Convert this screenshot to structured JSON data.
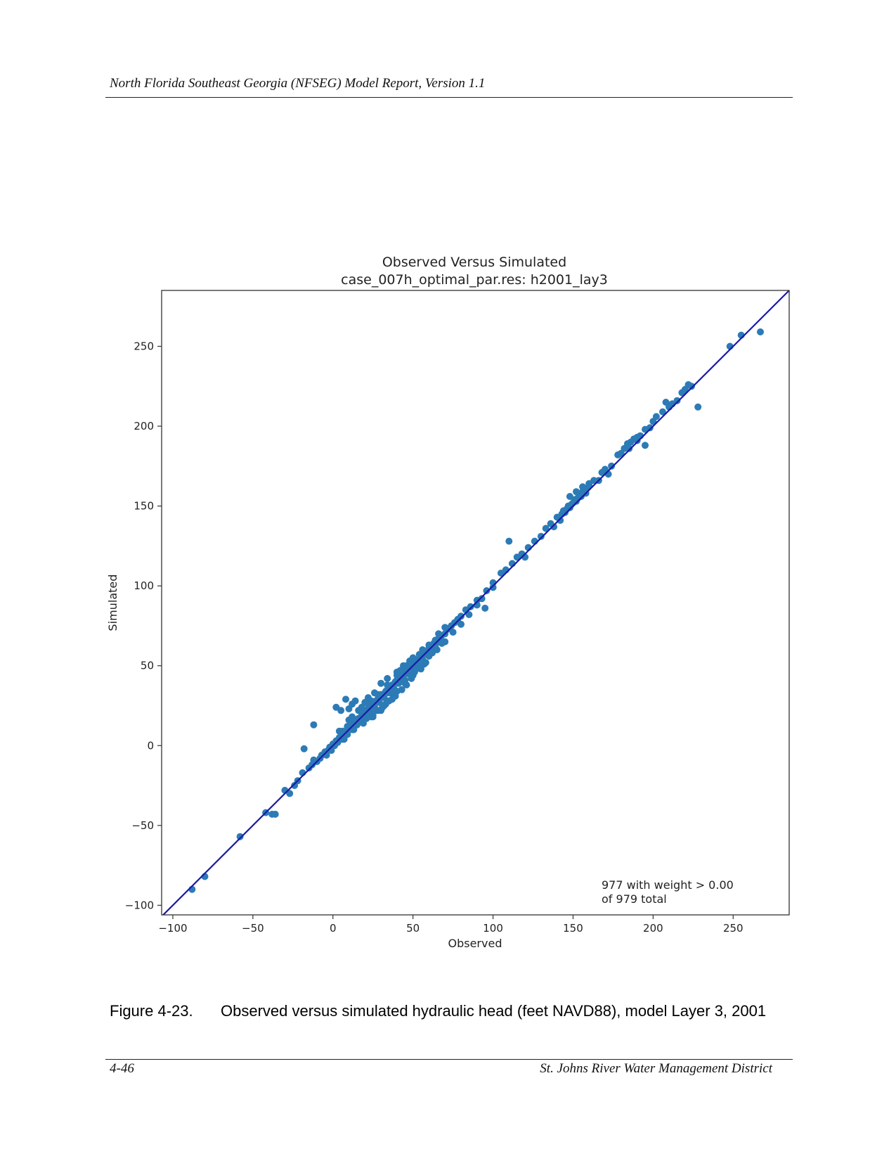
{
  "page": {
    "running_header": "North Florida Southeast Georgia (NFSEG) Model Report, Version 1.1",
    "footer_page": "4-46",
    "footer_org": "St. Johns River Water Management District"
  },
  "caption": {
    "figure_number": "Figure 4-23.",
    "text": "Observed versus simulated hydraulic head (feet NAVD88), model Layer 3, 2001"
  },
  "chart_data": {
    "type": "scatter",
    "title": "Observed Versus Simulated",
    "subtitle": "case_007h_optimal_par.res: h2001_lay3",
    "xlabel": "Observed",
    "ylabel": "Simulated",
    "xlim": [
      -107,
      285
    ],
    "ylim": [
      -106,
      285
    ],
    "xticks": [
      -100,
      -50,
      0,
      50,
      100,
      150,
      200,
      250
    ],
    "xtick_labels": [
      "−100",
      "−50",
      "0",
      "50",
      "100",
      "150",
      "200",
      "250"
    ],
    "yticks": [
      -100,
      -50,
      0,
      50,
      100,
      150,
      200,
      250
    ],
    "ytick_labels": [
      "−100",
      "−50",
      "0",
      "50",
      "100",
      "150",
      "200",
      "250"
    ],
    "grid": false,
    "annotation": [
      "977 with weight > 0.00",
      "of 979 total"
    ],
    "colors": {
      "points": "#2c7bb6",
      "one_to_one_line": "#1a1aa6",
      "axes": "#333333"
    },
    "reference_line": {
      "type": "1:1",
      "from": [
        -107,
        -107
      ],
      "to": [
        285,
        285
      ]
    },
    "series": [
      {
        "x": [
          -88,
          -80,
          -58,
          -42,
          -38,
          -36,
          -30,
          -27,
          -24,
          -22,
          -19,
          -15,
          -13,
          -12,
          -10,
          -8,
          -7,
          -5,
          -4,
          -3,
          -2,
          -1,
          0,
          1,
          2,
          3,
          4,
          5,
          6,
          7,
          8,
          9,
          10,
          11,
          12,
          13,
          14,
          15,
          16,
          17,
          18,
          19,
          20,
          21,
          22,
          23,
          24,
          25,
          26,
          27,
          28,
          29,
          30,
          31,
          32,
          33,
          34,
          35,
          36,
          37,
          38,
          39,
          40,
          41,
          42,
          43,
          44,
          45,
          46,
          47,
          48,
          49,
          50,
          51,
          52,
          53,
          54,
          55,
          56,
          57,
          58,
          59,
          60,
          61,
          62,
          63,
          64,
          65,
          66,
          67,
          68,
          70,
          72,
          74,
          76,
          78,
          80,
          83,
          86,
          90,
          93,
          96,
          100,
          105,
          108,
          112,
          115,
          118,
          120,
          122,
          126,
          130,
          133,
          136,
          138,
          140,
          142,
          143,
          144,
          145,
          146,
          147,
          148,
          149,
          150,
          151,
          152,
          153,
          154,
          155,
          156,
          157,
          158,
          160,
          163,
          166,
          168,
          170,
          172,
          174,
          178,
          180,
          182,
          184,
          186,
          188,
          190,
          192,
          195,
          198,
          200,
          202,
          206,
          208,
          212,
          215,
          218,
          220,
          224,
          228,
          248,
          255,
          267,
          -18,
          -12,
          2,
          5,
          8,
          10,
          12,
          14,
          16,
          18,
          20,
          22,
          24,
          26,
          28,
          30,
          32,
          34,
          36,
          38,
          40,
          42,
          44,
          46,
          48,
          50,
          52,
          54,
          56,
          58,
          60,
          62,
          64,
          66,
          68,
          70,
          6,
          9,
          12,
          15,
          18,
          21,
          24,
          27,
          30,
          33,
          36,
          39,
          42,
          45,
          48,
          51,
          54,
          57,
          4,
          7,
          10,
          13,
          16,
          19,
          22,
          25,
          28,
          31,
          34,
          37,
          40,
          43,
          46,
          49,
          25,
          30,
          35,
          40,
          45,
          50,
          55,
          60,
          65,
          70,
          75,
          80,
          85,
          90,
          95,
          100,
          110,
          148,
          152,
          156,
          158,
          160,
          185,
          190,
          195,
          210,
          222
        ],
        "y": [
          -90,
          -82,
          -57,
          -42,
          -43,
          -43,
          -28,
          -30,
          -25,
          -22,
          -17,
          -14,
          -12,
          -9,
          -10,
          -8,
          -6,
          -4,
          -6,
          -3,
          -1,
          -3,
          1,
          0,
          3,
          2,
          5,
          6,
          4,
          8,
          9,
          7,
          11,
          12,
          10,
          14,
          15,
          13,
          17,
          16,
          19,
          20,
          18,
          22,
          23,
          21,
          25,
          26,
          24,
          28,
          29,
          27,
          31,
          32,
          30,
          34,
          35,
          33,
          37,
          38,
          36,
          40,
          41,
          39,
          43,
          44,
          42,
          46,
          47,
          45,
          49,
          50,
          48,
          52,
          53,
          51,
          55,
          56,
          54,
          58,
          59,
          57,
          61,
          62,
          60,
          64,
          63,
          65,
          67,
          66,
          69,
          70,
          73,
          75,
          77,
          79,
          81,
          85,
          87,
          91,
          92,
          97,
          102,
          108,
          110,
          114,
          118,
          120,
          118,
          124,
          128,
          131,
          136,
          139,
          137,
          143,
          141,
          145,
          147,
          146,
          148,
          150,
          149,
          151,
          152,
          154,
          153,
          155,
          157,
          156,
          159,
          161,
          158,
          163,
          166,
          166,
          171,
          173,
          170,
          175,
          182,
          183,
          186,
          189,
          190,
          192,
          191,
          194,
          198,
          199,
          203,
          206,
          209,
          215,
          214,
          216,
          221,
          223,
          225,
          212,
          250,
          257,
          259,
          -2,
          13,
          24,
          22,
          29,
          23,
          26,
          28,
          17,
          15,
          27,
          30,
          18,
          33,
          22,
          39,
          25,
          42,
          33,
          35,
          46,
          40,
          50,
          38,
          53,
          55,
          48,
          57,
          60,
          52,
          63,
          58,
          66,
          70,
          64,
          74,
          9,
          12,
          18,
          13,
          24,
          17,
          28,
          22,
          32,
          26,
          37,
          31,
          47,
          41,
          52,
          46,
          57,
          51,
          9,
          4,
          16,
          10,
          22,
          14,
          26,
          19,
          32,
          24,
          38,
          29,
          44,
          35,
          50,
          42,
          18,
          22,
          28,
          34,
          39,
          44,
          48,
          56,
          60,
          65,
          71,
          76,
          82,
          88,
          86,
          99,
          128,
          156,
          159,
          162,
          160,
          164,
          186,
          193,
          188,
          212,
          226
        ]
      }
    ]
  }
}
